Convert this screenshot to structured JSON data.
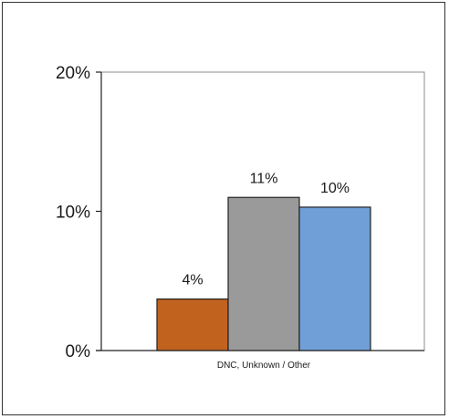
{
  "chart_data": {
    "type": "bar",
    "title": "",
    "xlabel": "",
    "ylabel": "",
    "categories": [
      "DNC, Unknown / Other"
    ],
    "series": [
      {
        "values": [
          4
        ],
        "label": "4%",
        "color": "#C1621F"
      },
      {
        "values": [
          11
        ],
        "label": "11%",
        "color": "#9A9A9A"
      },
      {
        "values": [
          10
        ],
        "label": "10%",
        "color": "#6F9FD6"
      }
    ],
    "exact_values": [
      3.7,
      11.0,
      10.3
    ],
    "ylim": [
      0,
      20
    ],
    "yticks": [
      0,
      10,
      20
    ],
    "ytick_labels": [
      "0%",
      "10%",
      "20%"
    ],
    "grid": false,
    "legend": "none"
  }
}
